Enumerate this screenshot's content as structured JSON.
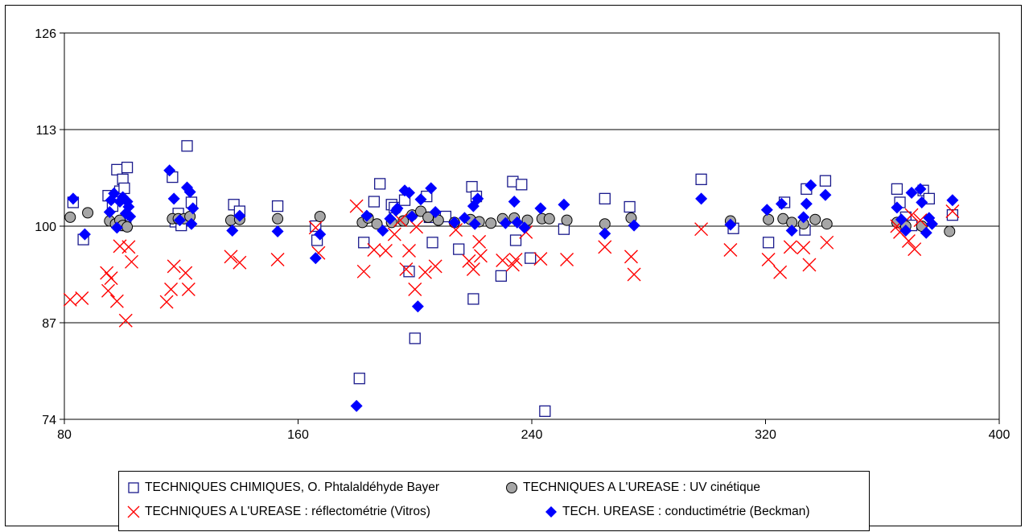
{
  "chart_data": {
    "type": "scatter",
    "title": "",
    "xlabel": "",
    "ylabel": "",
    "xlim": [
      80,
      400
    ],
    "ylim": [
      74,
      126
    ],
    "xticks": [
      80,
      160,
      240,
      320,
      400
    ],
    "yticks": [
      74,
      87,
      100,
      113,
      126
    ],
    "grid": "horizontal",
    "legend_position": "bottom",
    "series": [
      {
        "name": "TECHNIQUES CHIMIQUES, O. Phtalaldéhyde Bayer",
        "marker": "open-square",
        "color": "#1a1a8c",
        "points": [
          [
            83,
            103.2
          ],
          [
            86.5,
            98.2
          ],
          [
            95,
            104.1
          ],
          [
            96.5,
            102.7
          ],
          [
            98,
            107.6
          ],
          [
            99,
            104.7
          ],
          [
            100,
            106.3
          ],
          [
            100.5,
            105.1
          ],
          [
            101.5,
            107.9
          ],
          [
            98.5,
            100.3
          ],
          [
            101,
            100.1
          ],
          [
            117,
            106.6
          ],
          [
            118,
            100.6
          ],
          [
            119,
            101.7
          ],
          [
            120,
            100.1
          ],
          [
            122,
            110.8
          ],
          [
            123.5,
            103.2
          ],
          [
            138,
            102.9
          ],
          [
            140,
            102
          ],
          [
            153,
            102.7
          ],
          [
            166,
            100
          ],
          [
            166.5,
            98.1
          ],
          [
            181,
            79.5
          ],
          [
            182.5,
            97.8
          ],
          [
            186,
            103.3
          ],
          [
            188,
            105.7
          ],
          [
            192,
            102.9
          ],
          [
            193,
            102.5
          ],
          [
            196.5,
            103.5
          ],
          [
            198,
            93.9
          ],
          [
            200,
            84.9
          ],
          [
            204,
            104
          ],
          [
            205,
            101.2
          ],
          [
            206,
            97.8
          ],
          [
            210.5,
            101.3
          ],
          [
            215,
            96.9
          ],
          [
            219.5,
            105.3
          ],
          [
            220,
            90.2
          ],
          [
            221,
            104
          ],
          [
            229.5,
            93.3
          ],
          [
            233.5,
            106
          ],
          [
            234.5,
            98.1
          ],
          [
            236.5,
            105.6
          ],
          [
            239.5,
            95.7
          ],
          [
            244.5,
            75.1
          ],
          [
            251,
            99.6
          ],
          [
            265,
            103.7
          ],
          [
            273.5,
            102.6
          ],
          [
            298,
            106.3
          ],
          [
            309,
            99.7
          ],
          [
            321,
            97.8
          ],
          [
            326.5,
            103.2
          ],
          [
            333.5,
            99.5
          ],
          [
            334,
            105
          ],
          [
            340.5,
            106.1
          ],
          [
            365,
            105
          ],
          [
            366,
            103.2
          ],
          [
            368,
            101.2
          ],
          [
            370,
            100.1
          ],
          [
            374,
            104.8
          ],
          [
            376,
            103.7
          ],
          [
            384,
            101.5
          ]
        ]
      },
      {
        "name": "TECHNIQUES A L'UREASE : UV cinétique",
        "marker": "filled-circle",
        "color": "#a6a6a6",
        "points": [
          [
            82,
            101.2
          ],
          [
            88,
            101.8
          ],
          [
            95.5,
            100.7
          ],
          [
            97.5,
            100.3
          ],
          [
            99,
            100.8
          ],
          [
            100,
            100.1
          ],
          [
            101.5,
            99.9
          ],
          [
            117,
            101
          ],
          [
            119,
            101
          ],
          [
            121,
            101
          ],
          [
            123,
            101.3
          ],
          [
            137,
            100.8
          ],
          [
            140,
            100.9
          ],
          [
            153,
            101
          ],
          [
            167.5,
            101.3
          ],
          [
            182,
            100.5
          ],
          [
            184,
            101.1
          ],
          [
            187,
            100.3
          ],
          [
            192,
            100.5
          ],
          [
            196,
            100.7
          ],
          [
            199,
            101.5
          ],
          [
            202,
            102
          ],
          [
            204.5,
            101.2
          ],
          [
            208,
            100.8
          ],
          [
            213.5,
            100.5
          ],
          [
            219,
            100.9
          ],
          [
            222,
            100.6
          ],
          [
            226,
            100.4
          ],
          [
            230,
            101
          ],
          [
            234,
            101.1
          ],
          [
            238.5,
            100.8
          ],
          [
            243.5,
            101
          ],
          [
            246,
            101
          ],
          [
            252,
            100.8
          ],
          [
            265,
            100.3
          ],
          [
            274,
            101.1
          ],
          [
            308,
            100.7
          ],
          [
            321,
            100.9
          ],
          [
            326,
            101
          ],
          [
            329,
            100.5
          ],
          [
            333,
            100.3
          ],
          [
            337,
            100.9
          ],
          [
            341,
            100.3
          ],
          [
            365,
            100.5
          ],
          [
            368,
            100
          ],
          [
            373.5,
            100
          ],
          [
            383,
            99.3
          ]
        ]
      },
      {
        "name": "TECHNIQUES A L'UREASE : réflectométrie (Vitros)",
        "marker": "x-cross",
        "color": "#ff0000",
        "points": [
          [
            82,
            90.1
          ],
          [
            86,
            90.3
          ],
          [
            94.5,
            93.7
          ],
          [
            95,
            91.3
          ],
          [
            96,
            93
          ],
          [
            98,
            89.9
          ],
          [
            99,
            97.3
          ],
          [
            101,
            87.3
          ],
          [
            102,
            97.2
          ],
          [
            103,
            95.2
          ],
          [
            115,
            89.8
          ],
          [
            116.5,
            91.5
          ],
          [
            117.5,
            94.6
          ],
          [
            121.5,
            93.7
          ],
          [
            122.5,
            91.5
          ],
          [
            137,
            95.9
          ],
          [
            140,
            95.1
          ],
          [
            153,
            95.5
          ],
          [
            166,
            99.8
          ],
          [
            167,
            96.4
          ],
          [
            180,
            102.7
          ],
          [
            182.5,
            93.9
          ],
          [
            186,
            96.8
          ],
          [
            190,
            96.7
          ],
          [
            193,
            98.9
          ],
          [
            195,
            100.8
          ],
          [
            197,
            94.2
          ],
          [
            198,
            96.7
          ],
          [
            200,
            91.5
          ],
          [
            200.5,
            99.9
          ],
          [
            203.5,
            93.8
          ],
          [
            207,
            94.6
          ],
          [
            214,
            99.5
          ],
          [
            218.5,
            95.3
          ],
          [
            220,
            94.2
          ],
          [
            222,
            97.9
          ],
          [
            222.5,
            96
          ],
          [
            230,
            95.4
          ],
          [
            233.5,
            94.8
          ],
          [
            234.5,
            95.5
          ],
          [
            238,
            99.2
          ],
          [
            243,
            95.6
          ],
          [
            252,
            95.5
          ],
          [
            265,
            97.2
          ],
          [
            274,
            95.9
          ],
          [
            275,
            93.5
          ],
          [
            298,
            99.6
          ],
          [
            308,
            96.8
          ],
          [
            321,
            95.5
          ],
          [
            325,
            93.8
          ],
          [
            328.5,
            97.2
          ],
          [
            333,
            97.1
          ],
          [
            335,
            94.8
          ],
          [
            341,
            97.8
          ],
          [
            365,
            100
          ],
          [
            366,
            99.2
          ],
          [
            369,
            98
          ],
          [
            370,
            101.5
          ],
          [
            371,
            96.9
          ],
          [
            373,
            100.8
          ],
          [
            384,
            102
          ]
        ]
      },
      {
        "name": "TECH. UREASE : conductimétrie (Beckman)",
        "marker": "filled-diamond",
        "color": "#0000ff",
        "points": [
          [
            83,
            103.7
          ],
          [
            87,
            98.9
          ],
          [
            95.5,
            101.9
          ],
          [
            96,
            103.5
          ],
          [
            97,
            104.4
          ],
          [
            98,
            99.8
          ],
          [
            99,
            103.3
          ],
          [
            100,
            103.9
          ],
          [
            101,
            101.7
          ],
          [
            101.5,
            103.3
          ],
          [
            102,
            102.6
          ],
          [
            102.5,
            101.3
          ],
          [
            116,
            107.5
          ],
          [
            117.5,
            103.7
          ],
          [
            119.5,
            100.8
          ],
          [
            122,
            105.2
          ],
          [
            123,
            104.6
          ],
          [
            123.5,
            100.3
          ],
          [
            124,
            102.4
          ],
          [
            137.5,
            99.4
          ],
          [
            140,
            101.4
          ],
          [
            153,
            99.3
          ],
          [
            166,
            95.7
          ],
          [
            167.5,
            98.9
          ],
          [
            180,
            75.8
          ],
          [
            183.5,
            101.4
          ],
          [
            189,
            99.4
          ],
          [
            191.5,
            101
          ],
          [
            193.5,
            102.1
          ],
          [
            194,
            102.4
          ],
          [
            196.5,
            104.8
          ],
          [
            198,
            104.5
          ],
          [
            199,
            101.3
          ],
          [
            201,
            89.2
          ],
          [
            202,
            103.6
          ],
          [
            205.5,
            105.1
          ],
          [
            207,
            101.9
          ],
          [
            213.5,
            100.5
          ],
          [
            217,
            101.1
          ],
          [
            220,
            102.7
          ],
          [
            220.5,
            100.3
          ],
          [
            221.5,
            103.7
          ],
          [
            231,
            100.4
          ],
          [
            234,
            103.3
          ],
          [
            235,
            100.5
          ],
          [
            237.5,
            99.8
          ],
          [
            243,
            102.4
          ],
          [
            251,
            102.9
          ],
          [
            265,
            99
          ],
          [
            275,
            100.1
          ],
          [
            298,
            103.7
          ],
          [
            308,
            100.2
          ],
          [
            320.5,
            102.2
          ],
          [
            325.5,
            103
          ],
          [
            329,
            99.4
          ],
          [
            333,
            101.2
          ],
          [
            334,
            103
          ],
          [
            335.5,
            105.5
          ],
          [
            340.5,
            104.2
          ],
          [
            365,
            102.5
          ],
          [
            366.5,
            100.9
          ],
          [
            368,
            99.4
          ],
          [
            370,
            104.5
          ],
          [
            373,
            105
          ],
          [
            373.5,
            103.2
          ],
          [
            375,
            99.1
          ],
          [
            376,
            101.1
          ],
          [
            377,
            100.3
          ],
          [
            384,
            103.5
          ]
        ]
      }
    ]
  }
}
